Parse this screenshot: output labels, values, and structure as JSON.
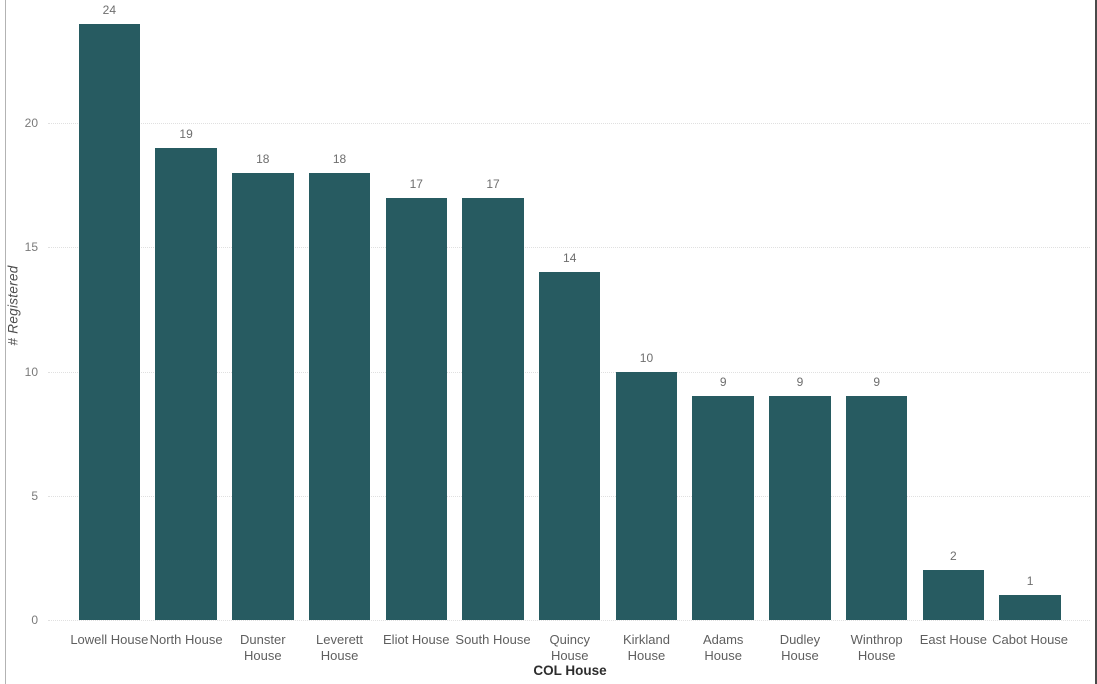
{
  "chart_data": {
    "type": "bar",
    "title": "",
    "xlabel": "COL House",
    "ylabel": "# Registered",
    "ylim": [
      0,
      24
    ],
    "y_ticks": [
      0,
      5,
      10,
      15,
      20
    ],
    "grid": "horizontal-dotted",
    "legend": "none",
    "bar_color": "#275b61",
    "categories": [
      "Lowell House",
      "North House",
      "Dunster House",
      "Leverett House",
      "Eliot House",
      "South House",
      "Quincy House",
      "Kirkland House",
      "Adams House",
      "Dudley House",
      "Winthrop House",
      "East House",
      "Cabot House"
    ],
    "category_label_lines": [
      [
        "Lowell House"
      ],
      [
        "North House"
      ],
      [
        "Dunster",
        "House"
      ],
      [
        "Leverett",
        "House"
      ],
      [
        "Eliot House"
      ],
      [
        "South House"
      ],
      [
        "Quincy",
        "House"
      ],
      [
        "Kirkland",
        "House"
      ],
      [
        "Adams",
        "House"
      ],
      [
        "Dudley",
        "House"
      ],
      [
        "Winthrop",
        "House"
      ],
      [
        "East House"
      ],
      [
        "Cabot House"
      ]
    ],
    "values": [
      24,
      19,
      18,
      18,
      17,
      17,
      14,
      10,
      9,
      9,
      9,
      2,
      1
    ]
  },
  "colors": {
    "bar": "#275b61",
    "value_label": "#6e6e6e",
    "tick_label": "#7a7a7a",
    "category_label": "#5f5f5f",
    "x_title": "#2d2d2d",
    "y_title": "#4d4d4d",
    "gridline": "#e0e0e0"
  }
}
